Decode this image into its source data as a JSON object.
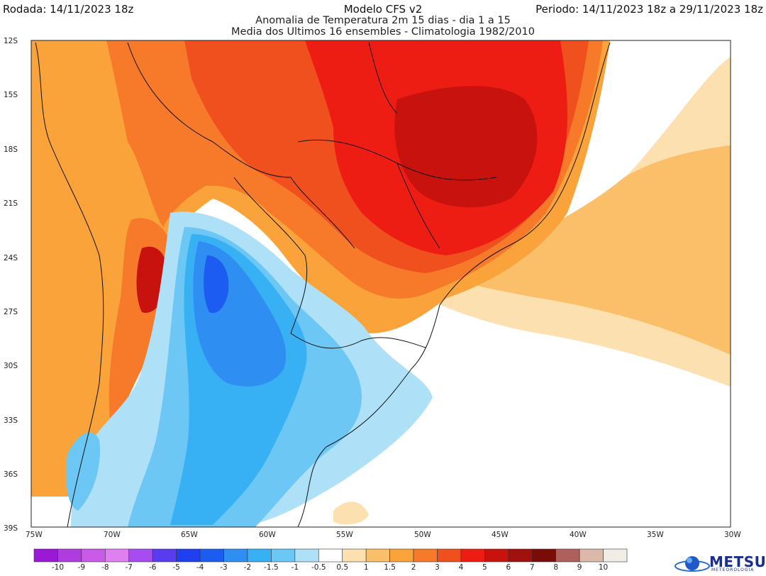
{
  "header": {
    "run": "Rodada: 14/11/2023 18z",
    "model": "Modelo CFS v2",
    "period": "Periodo: 14/11/2023 18z a 29/11/2023 18z",
    "subtitle1": "Anomalia de Temperatura 2m 15 dias - dia 1 a 15",
    "subtitle2": "Media dos Ultimos 16 ensembles - Climatologia 1982/2010"
  },
  "map": {
    "lat_labels": [
      "12S",
      "15S",
      "18S",
      "21S",
      "24S",
      "27S",
      "30S",
      "33S",
      "36S",
      "39S"
    ],
    "lon_labels": [
      "75W",
      "70W",
      "65W",
      "60W",
      "55W",
      "50W",
      "45W",
      "40W",
      "35W",
      "30W"
    ],
    "extent": {
      "lon_min": -75,
      "lon_max": -30,
      "lat_min": -39,
      "lat_max": -12
    }
  },
  "colorbar": {
    "labels": [
      "-10",
      "-9",
      "-8",
      "-7",
      "-6",
      "-5",
      "-4",
      "-3",
      "-2",
      "-1.5",
      "-1",
      "-0.5",
      "0.5",
      "1",
      "1.5",
      "2",
      "3",
      "4",
      "5",
      "6",
      "7",
      "8",
      "9",
      "10"
    ],
    "colors": [
      "#9a19d6",
      "#b03ce0",
      "#c95be8",
      "#df7ff0",
      "#a64cf0",
      "#5a3cf0",
      "#1f3ff0",
      "#1c5cf0",
      "#2f8ef2",
      "#38b0f4",
      "#6cc7f5",
      "#aee0f8",
      "#ffffff",
      "#fde0b0",
      "#fbbf6a",
      "#f9a33a",
      "#f67a2a",
      "#f0501e",
      "#ee1d14",
      "#c8120e",
      "#a0100c",
      "#7a0c08",
      "#b0605a",
      "#dcb8a8",
      "#f2ece6"
    ]
  },
  "logo": {
    "name": "METSUL",
    "tagline": "METEOROLOGIA"
  }
}
